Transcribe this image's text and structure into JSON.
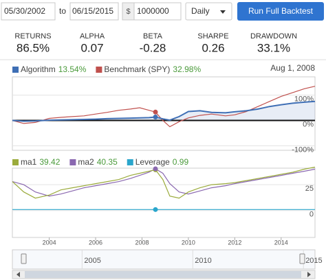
{
  "toolbar": {
    "start_date": "05/30/2002",
    "to": "to",
    "end_date": "06/15/2015",
    "currency": "$",
    "capital": "1000000",
    "frequency": "Daily",
    "run_button": "Run Full Backtest"
  },
  "stats": [
    {
      "label": "RETURNS",
      "value": "86.5%"
    },
    {
      "label": "ALPHA",
      "value": "0.07"
    },
    {
      "label": "BETA",
      "value": "-0.28"
    },
    {
      "label": "SHARPE",
      "value": "0.26"
    },
    {
      "label": "DRAWDOWN",
      "value": "33.1%"
    }
  ],
  "performance_chart": {
    "type": "line",
    "date": "Aug 1, 2008",
    "x": [
      2002.41,
      2002.9,
      2003.4,
      2004,
      2004.5,
      2005,
      2005.5,
      2006,
      2006.5,
      2007,
      2007.5,
      2007.9,
      2008.3,
      2008.58,
      2008.9,
      2009.2,
      2009.6,
      2010,
      2010.5,
      2011,
      2011.6,
      2012,
      2012.5,
      2013,
      2013.5,
      2014,
      2014.5,
      2015,
      2015.46
    ],
    "xlim": [
      2002.41,
      2015.46
    ],
    "ylim": [
      -118,
      172
    ],
    "yticks": [
      {
        "value": 100,
        "label": "100%"
      },
      {
        "value": 0,
        "label": "0%"
      },
      {
        "value": -100,
        "label": "-100%"
      }
    ],
    "series": [
      {
        "name": "Algorithm",
        "legend_value": "13.54%",
        "color": "#3f6fb5",
        "values": [
          0,
          -3,
          -2,
          1,
          2,
          3,
          4,
          5,
          7,
          8,
          9,
          10,
          11,
          13.54,
          6,
          1,
          15,
          35,
          38,
          32,
          30,
          34,
          38,
          45,
          55,
          62,
          68,
          72,
          75
        ]
      },
      {
        "name": "Benchmark (SPY)",
        "legend_value": "32.98%",
        "color": "#c0504d",
        "values": [
          0,
          -12,
          -8,
          8,
          12,
          15,
          18,
          25,
          32,
          40,
          45,
          50,
          40,
          32.98,
          0,
          -25,
          -5,
          10,
          20,
          25,
          18,
          22,
          35,
          55,
          75,
          95,
          110,
          125,
          135
        ]
      }
    ]
  },
  "indicator_chart": {
    "type": "line",
    "x": [
      2002.41,
      2002.9,
      2003.4,
      2004,
      2004.5,
      2005,
      2005.5,
      2006,
      2006.5,
      2007,
      2007.5,
      2007.9,
      2008.3,
      2008.58,
      2008.9,
      2009.2,
      2009.6,
      2010,
      2010.5,
      2011,
      2011.6,
      2012,
      2012.5,
      2013,
      2013.5,
      2014,
      2014.5,
      2015,
      2015.46
    ],
    "xlim": [
      2002.41,
      2015.46
    ],
    "xticks": [
      2004,
      2006,
      2008,
      2010,
      2012,
      2014
    ],
    "ylim": [
      -26,
      41
    ],
    "yticks": [
      25,
      0
    ],
    "series": [
      {
        "name": "ma1",
        "legend_value": "39.42",
        "color": "#9bab3c",
        "values": [
          28,
          18,
          12,
          15,
          20,
          22,
          24,
          26,
          28,
          30,
          34,
          36,
          38,
          39.42,
          30,
          14,
          12,
          18,
          22,
          25,
          26,
          27,
          29,
          31,
          33,
          35,
          37,
          40,
          42
        ]
      },
      {
        "name": "ma2",
        "legend_value": "40.35",
        "color": "#8a68b0",
        "values": [
          28,
          25,
          18,
          14,
          16,
          19,
          22,
          24,
          26,
          28,
          31,
          34,
          37,
          40.35,
          36,
          26,
          18,
          16,
          19,
          22,
          24,
          26,
          28,
          30,
          32,
          34,
          36,
          38,
          40
        ]
      },
      {
        "name": "Leverage",
        "legend_value": "0.99",
        "color": "#2aa6cc",
        "values": [
          1,
          1,
          1,
          1,
          1,
          1,
          1,
          1,
          1,
          1,
          1,
          1,
          1,
          0.99,
          1,
          1,
          1,
          1,
          1,
          1,
          1,
          1,
          1,
          1,
          1,
          1,
          1,
          1,
          1
        ]
      }
    ]
  },
  "navigator": {
    "xlim": [
      2002.41,
      2015.46
    ],
    "xticks": [
      2005,
      2010,
      2015
    ]
  }
}
